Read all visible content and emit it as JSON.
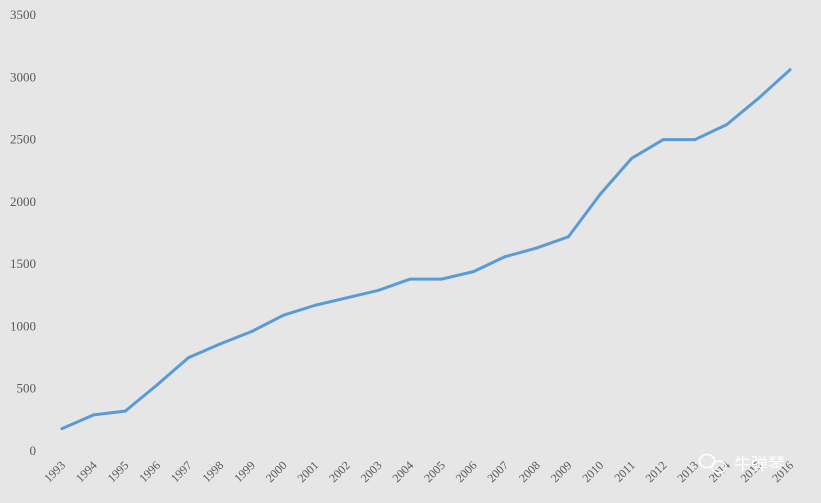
{
  "chart_data": {
    "type": "line",
    "title": "",
    "xlabel": "",
    "ylabel": "",
    "grid": false,
    "legend": "none",
    "x": [
      "1993",
      "1994",
      "1995",
      "1996",
      "1997",
      "1998",
      "1999",
      "2000",
      "2001",
      "2002",
      "2003",
      "2004",
      "2005",
      "2006",
      "2007",
      "2008",
      "2009",
      "2010",
      "2011",
      "2012",
      "2013",
      "2014",
      "2015",
      "2016"
    ],
    "series": [
      {
        "values": [
          180,
          290,
          320,
          530,
          750,
          860,
          960,
          1090,
          1170,
          1230,
          1290,
          1380,
          1380,
          1440,
          1560,
          1630,
          1720,
          2060,
          2350,
          2500,
          2500,
          2620,
          2830,
          3060
        ]
      }
    ],
    "ylim": [
      0,
      3500
    ],
    "yticks": [
      0,
      500,
      1000,
      1500,
      2000,
      2500,
      3000,
      3500
    ],
    "colors": {
      "line": "#5b9bd5",
      "background": "#e7e6e6",
      "axis_text": "#595959"
    }
  },
  "watermark": {
    "text": "牛弹琴",
    "icon": "wechat-bubble-icon"
  }
}
